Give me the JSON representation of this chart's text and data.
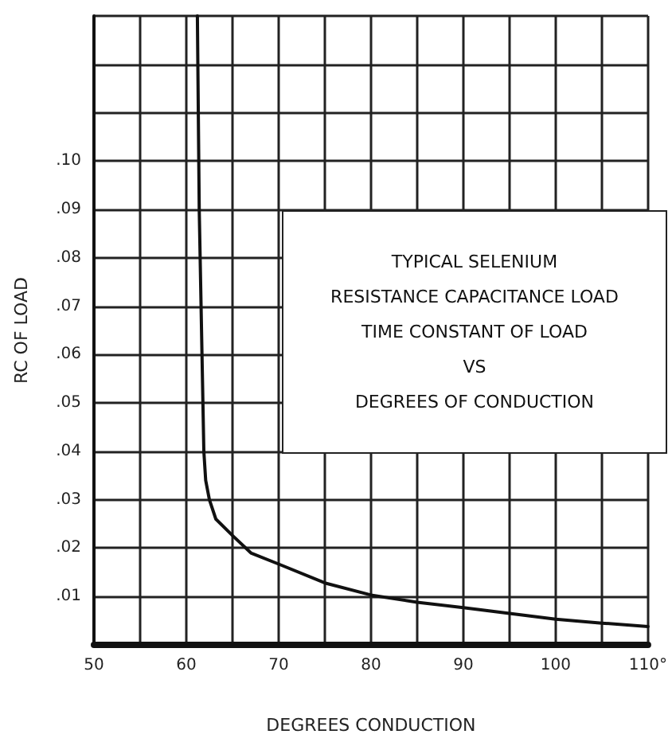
{
  "chart_data": {
    "type": "line",
    "title": "TYPICAL SELENIUM\nRESISTANCE CAPACITANCE LOAD\nTIME CONSTANT OF LOAD\nVS\nDEGREES OF CONDUCTION",
    "xlabel": "DEGREES CONDUCTION",
    "ylabel": "RC OF LOAD",
    "x": [
      61.2,
      61.4,
      61.7,
      61.9,
      62.1,
      62.5,
      63.2,
      65,
      67,
      70,
      75,
      80,
      85,
      90,
      95,
      100,
      105,
      110
    ],
    "series": [
      {
        "color": "#111111",
        "values": [
          0.13,
          0.09,
          0.06,
          0.04,
          0.034,
          0.03,
          0.026,
          0.0226,
          0.019,
          0.0167,
          0.0128,
          0.0103,
          0.0088,
          0.0077,
          0.0065,
          0.0053,
          0.0045,
          0.0038
        ]
      }
    ],
    "xlim": [
      50,
      110
    ],
    "ylim": [
      0,
      0.13
    ],
    "xticks": [
      50,
      {
        "value": 55,
        "label": null
      },
      60,
      {
        "value": 65,
        "label": null
      },
      70,
      {
        "value": 75,
        "label": null
      },
      80,
      {
        "value": 85,
        "label": null
      },
      90,
      {
        "value": 95,
        "label": null
      },
      100,
      {
        "value": 105,
        "label": null
      },
      {
        "value": 110,
        "label": "110°"
      }
    ],
    "yticks": [
      {
        "value": 0,
        "label": null
      },
      {
        "value": 0.01,
        "label": ".01"
      },
      {
        "value": 0.02,
        "label": ".02"
      },
      {
        "value": 0.03,
        "label": ".03"
      },
      {
        "value": 0.04,
        "label": ".04"
      },
      {
        "value": 0.05,
        "label": ".05"
      },
      {
        "value": 0.06,
        "label": ".06"
      },
      {
        "value": 0.07,
        "label": ".07"
      },
      {
        "value": 0.08,
        "label": ".08"
      },
      {
        "value": 0.09,
        "label": ".09"
      },
      {
        "value": 0.1,
        "label": ".10"
      },
      {
        "value": 0.11,
        "label": null
      },
      {
        "value": 0.12,
        "label": null
      },
      {
        "value": 0.13,
        "label": null
      }
    ],
    "grid": true,
    "marker": "none",
    "line_style": "solid"
  }
}
